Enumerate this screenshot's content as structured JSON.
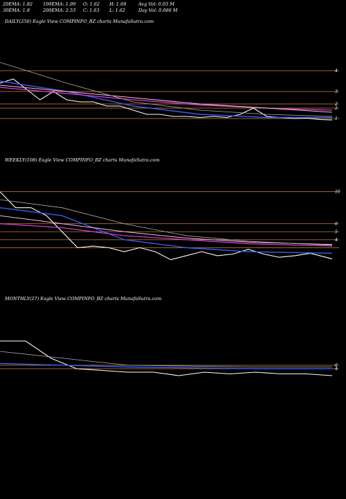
{
  "header": {
    "ema20": "20EMA: 1.82",
    "ema100": "100EMA: 1.99",
    "open": "O: 1.62",
    "high": "H: 1.69",
    "avg_vol": "Avg Vol: 0.03  M",
    "ema30": "30EMA: 1.8",
    "ema200": "200EMA: 2.53",
    "close": "C: 1.63",
    "low": "L: 1.62",
    "day_vol": "Day Vol: 0.066  M"
  },
  "colors": {
    "background": "#000000",
    "price": "#ffffff",
    "ema_blue": "#3a5cf0",
    "ema_magenta": "#e040e0",
    "ema_pink": "#ffb6e6",
    "ema_grey": "#b0b0b0",
    "level_orange": "#d2873a"
  },
  "chart_data": [
    {
      "type": "line",
      "title": "DAILY(250) Eagle   View  COMPINFO_BZ charts MunafaSutra.com",
      "y_ticks": [
        "4",
        "3",
        "2",
        "2",
        "1"
      ],
      "levels": [
        4.0,
        3.0,
        2.4,
        2.2,
        1.7
      ],
      "ylim": [
        1.0,
        6.0
      ],
      "x_count": 250,
      "series": [
        {
          "role": "price",
          "x": [
            0,
            10,
            20,
            30,
            40,
            50,
            60,
            70,
            80,
            90,
            100,
            110,
            120,
            130,
            140,
            150,
            160,
            170,
            180,
            190,
            200,
            210,
            220,
            230,
            240,
            249
          ],
          "values": [
            3.4,
            3.6,
            3.1,
            2.6,
            3.0,
            2.6,
            2.5,
            2.5,
            2.3,
            2.3,
            2.1,
            1.9,
            1.9,
            1.8,
            1.8,
            1.75,
            1.8,
            1.75,
            1.9,
            2.2,
            1.8,
            1.75,
            1.7,
            1.72,
            1.65,
            1.63
          ]
        },
        {
          "role": "ema_blue",
          "x": [
            0,
            50,
            100,
            150,
            200,
            249
          ],
          "values": [
            3.5,
            3.0,
            2.3,
            1.9,
            1.75,
            1.75
          ]
        },
        {
          "role": "ema_magenta",
          "x": [
            0,
            50,
            100,
            150,
            200,
            249
          ],
          "values": [
            3.2,
            2.9,
            2.6,
            2.35,
            2.2,
            2.1
          ]
        },
        {
          "role": "ema_pink",
          "x": [
            0,
            50,
            100,
            150,
            200,
            249
          ],
          "values": [
            3.3,
            3.0,
            2.7,
            2.4,
            2.2,
            2.0
          ]
        },
        {
          "role": "ema_grey",
          "x": [
            0,
            50,
            100,
            150,
            200,
            249
          ],
          "values": [
            4.4,
            3.4,
            2.5,
            2.1,
            1.9,
            1.8
          ]
        }
      ]
    },
    {
      "type": "line",
      "title": "WEEKLY(108) Eagle   View  COMPINFO_BZ charts MunafaSutra.com",
      "y_ticks": [
        "10",
        "6",
        "5",
        "4"
      ],
      "levels": [
        10,
        6,
        5,
        4,
        3
      ],
      "ylim": [
        0,
        13
      ],
      "x_count": 108,
      "series": [
        {
          "role": "price",
          "x": [
            0,
            5,
            10,
            15,
            20,
            25,
            30,
            35,
            40,
            45,
            50,
            55,
            60,
            65,
            70,
            75,
            80,
            85,
            90,
            95,
            100,
            107
          ],
          "values": [
            10,
            8,
            8,
            7,
            5,
            3,
            3.2,
            3,
            2.5,
            3,
            2.5,
            1.5,
            2,
            2.5,
            2,
            2.2,
            2.8,
            2.2,
            1.8,
            2,
            2.3,
            1.6
          ]
        },
        {
          "role": "ema_blue",
          "x": [
            0,
            20,
            40,
            60,
            80,
            107
          ],
          "values": [
            8,
            7,
            4,
            3,
            2.5,
            2.3
          ]
        },
        {
          "role": "ema_magenta",
          "x": [
            0,
            20,
            40,
            60,
            80,
            107
          ],
          "values": [
            6,
            5.5,
            4.5,
            4,
            3.5,
            3.2
          ]
        },
        {
          "role": "ema_pink",
          "x": [
            0,
            20,
            40,
            60,
            80,
            107
          ],
          "values": [
            7,
            6,
            5,
            4.2,
            3.7,
            3.4
          ]
        },
        {
          "role": "ema_grey",
          "x": [
            0,
            20,
            40,
            60,
            80,
            107
          ],
          "values": [
            9,
            8,
            6,
            4.5,
            3.8,
            3.3
          ]
        }
      ]
    },
    {
      "type": "line",
      "title": "MONTHLY(27) Eagle   View  COMPINFO_BZ charts MunafaSutra.com",
      "y_ticks": [
        "6",
        "4"
      ],
      "levels": [
        6,
        4
      ],
      "ylim": [
        -20,
        40
      ],
      "x_count": 27,
      "series": [
        {
          "role": "price",
          "x": [
            0,
            2,
            4,
            6,
            8,
            10,
            12,
            14,
            16,
            18,
            20,
            22,
            24,
            26
          ],
          "values": [
            20,
            20,
            10,
            4,
            3,
            2,
            2,
            0,
            2,
            1,
            2,
            1,
            1,
            0
          ]
        },
        {
          "role": "ema_blue",
          "x": [
            0,
            10,
            20,
            26
          ],
          "values": [
            7,
            5,
            4,
            4
          ]
        },
        {
          "role": "ema_grey",
          "x": [
            0,
            10,
            20,
            26
          ],
          "values": [
            14,
            6,
            5,
            5
          ]
        }
      ]
    }
  ]
}
